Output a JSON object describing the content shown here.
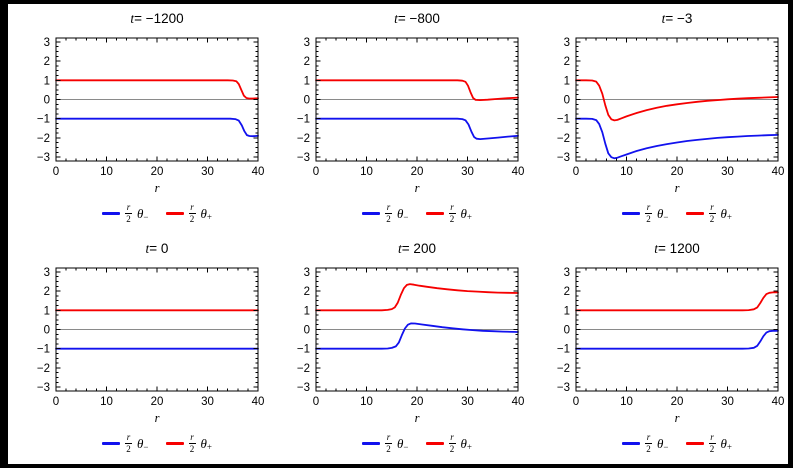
{
  "figure": {
    "background": "#ffffff",
    "border_color": "#000000"
  },
  "chart_data": {
    "type": "line",
    "layout": "2 rows x 3 columns of framed panels",
    "xlabel": "r",
    "xlim": [
      0,
      40
    ],
    "ylim": [
      -3.2,
      3.2
    ],
    "x_ticks": [
      0,
      10,
      20,
      30,
      40
    ],
    "x_tick_labels": [
      "0",
      "10",
      "20",
      "30",
      "40"
    ],
    "x_minor_step": 2,
    "y_ticks": [
      -3,
      -2,
      -1,
      0,
      1,
      2,
      3
    ],
    "y_tick_labels": [
      "−3",
      "−2",
      "−1",
      "0",
      "1",
      "2",
      "3"
    ],
    "y_minor_step": 0.25,
    "grid": "zero-line only",
    "zero_line_color": "#8a8a8a",
    "frame_color": "#000000",
    "legend_position": "below each panel",
    "legend": {
      "items": [
        {
          "series": "theta-minus",
          "color": "#1212ee",
          "frac_num": "r",
          "frac_den": "2",
          "symbol": "θ",
          "subscript": "−"
        },
        {
          "series": "theta-plus",
          "color": "#f60000",
          "frac_num": "r",
          "frac_den": "2",
          "symbol": "θ",
          "subscript": "+"
        }
      ]
    },
    "panels": [
      {
        "title_var": "t",
        "title_rest": "= −1200",
        "series": [
          {
            "name": "theta-minus",
            "color": "#1212ee",
            "points": [
              [
                0,
                -1
              ],
              [
                10,
                -1
              ],
              [
                20,
                -1
              ],
              [
                30,
                -1
              ],
              [
                34.5,
                -1
              ],
              [
                35.5,
                -1.02
              ],
              [
                36.2,
                -1.1
              ],
              [
                36.8,
                -1.35
              ],
              [
                37.3,
                -1.65
              ],
              [
                37.8,
                -1.85
              ],
              [
                38.3,
                -1.9
              ],
              [
                39,
                -1.91
              ],
              [
                40,
                -1.89
              ]
            ]
          },
          {
            "name": "theta-plus",
            "color": "#f60000",
            "points": [
              [
                0,
                1
              ],
              [
                10,
                1
              ],
              [
                20,
                1
              ],
              [
                30,
                1
              ],
              [
                34,
                1
              ],
              [
                35,
                0.99
              ],
              [
                35.7,
                0.95
              ],
              [
                36.2,
                0.8
              ],
              [
                36.7,
                0.5
              ],
              [
                37.2,
                0.2
              ],
              [
                37.7,
                0.08
              ],
              [
                38.2,
                0.05
              ],
              [
                39,
                0.05
              ],
              [
                40,
                0.06
              ]
            ]
          }
        ]
      },
      {
        "title_var": "t",
        "title_rest": "= −800",
        "series": [
          {
            "name": "theta-minus",
            "color": "#1212ee",
            "points": [
              [
                0,
                -1
              ],
              [
                10,
                -1
              ],
              [
                20,
                -1
              ],
              [
                28,
                -1
              ],
              [
                29,
                -1.02
              ],
              [
                29.6,
                -1.08
              ],
              [
                30.2,
                -1.3
              ],
              [
                30.8,
                -1.68
              ],
              [
                31.3,
                -1.95
              ],
              [
                31.8,
                -2.04
              ],
              [
                32.5,
                -2.06
              ],
              [
                34,
                -2.03
              ],
              [
                36,
                -1.98
              ],
              [
                38,
                -1.93
              ],
              [
                40,
                -1.89
              ]
            ]
          },
          {
            "name": "theta-plus",
            "color": "#f60000",
            "points": [
              [
                0,
                1
              ],
              [
                10,
                1
              ],
              [
                20,
                1
              ],
              [
                28,
                1
              ],
              [
                29,
                0.98
              ],
              [
                29.6,
                0.92
              ],
              [
                30.1,
                0.72
              ],
              [
                30.6,
                0.38
              ],
              [
                31.1,
                0.08
              ],
              [
                31.6,
                -0.02
              ],
              [
                32.5,
                -0.03
              ],
              [
                34,
                -0.01
              ],
              [
                36,
                0.03
              ],
              [
                38,
                0.07
              ],
              [
                40,
                0.1
              ]
            ]
          }
        ]
      },
      {
        "title_var": "t",
        "title_rest": "= −3",
        "series": [
          {
            "name": "theta-minus",
            "color": "#1212ee",
            "points": [
              [
                0,
                -1
              ],
              [
                2,
                -1
              ],
              [
                3.2,
                -1.01
              ],
              [
                4,
                -1.07
              ],
              [
                4.6,
                -1.28
              ],
              [
                5.2,
                -1.7
              ],
              [
                5.8,
                -2.3
              ],
              [
                6.4,
                -2.8
              ],
              [
                7,
                -3.0
              ],
              [
                7.6,
                -3.06
              ],
              [
                8.2,
                -3.03
              ],
              [
                9,
                -2.95
              ],
              [
                10,
                -2.86
              ],
              [
                12,
                -2.68
              ],
              [
                14,
                -2.54
              ],
              [
                16,
                -2.42
              ],
              [
                18,
                -2.32
              ],
              [
                20,
                -2.24
              ],
              [
                22,
                -2.16
              ],
              [
                24,
                -2.1
              ],
              [
                26,
                -2.05
              ],
              [
                28,
                -2.0
              ],
              [
                30,
                -1.96
              ],
              [
                32,
                -1.93
              ],
              [
                34,
                -1.9
              ],
              [
                36,
                -1.88
              ],
              [
                38,
                -1.86
              ],
              [
                40,
                -1.84
              ]
            ]
          },
          {
            "name": "theta-plus",
            "color": "#f60000",
            "points": [
              [
                0,
                1
              ],
              [
                2,
                1
              ],
              [
                3.2,
                0.99
              ],
              [
                4,
                0.93
              ],
              [
                4.6,
                0.72
              ],
              [
                5.2,
                0.3
              ],
              [
                5.8,
                -0.3
              ],
              [
                6.4,
                -0.8
              ],
              [
                7,
                -1.03
              ],
              [
                7.6,
                -1.09
              ],
              [
                8.2,
                -1.06
              ],
              [
                9,
                -0.98
              ],
              [
                10,
                -0.88
              ],
              [
                12,
                -0.7
              ],
              [
                14,
                -0.55
              ],
              [
                16,
                -0.43
              ],
              [
                18,
                -0.33
              ],
              [
                20,
                -0.25
              ],
              [
                22,
                -0.18
              ],
              [
                24,
                -0.12
              ],
              [
                26,
                -0.07
              ],
              [
                28,
                -0.03
              ],
              [
                30,
                0.01
              ],
              [
                32,
                0.04
              ],
              [
                34,
                0.07
              ],
              [
                36,
                0.09
              ],
              [
                38,
                0.11
              ],
              [
                40,
                0.13
              ]
            ]
          }
        ]
      },
      {
        "title_var": "t",
        "title_rest": "= 0",
        "series": [
          {
            "name": "theta-minus",
            "color": "#1212ee",
            "points": [
              [
                0,
                -1
              ],
              [
                10,
                -1
              ],
              [
                20,
                -1
              ],
              [
                30,
                -1
              ],
              [
                40,
                -1
              ]
            ]
          },
          {
            "name": "theta-plus",
            "color": "#f60000",
            "points": [
              [
                0,
                1
              ],
              [
                10,
                1
              ],
              [
                20,
                1
              ],
              [
                30,
                1
              ],
              [
                40,
                1
              ]
            ]
          }
        ]
      },
      {
        "title_var": "t",
        "title_rest": "= 200",
        "series": [
          {
            "name": "theta-minus",
            "color": "#1212ee",
            "points": [
              [
                0,
                -1
              ],
              [
                10,
                -1
              ],
              [
                13,
                -1
              ],
              [
                14.2,
                -0.99
              ],
              [
                15,
                -0.96
              ],
              [
                15.8,
                -0.88
              ],
              [
                16.4,
                -0.68
              ],
              [
                17,
                -0.3
              ],
              [
                17.6,
                0.05
              ],
              [
                18.2,
                0.25
              ],
              [
                18.8,
                0.32
              ],
              [
                19.6,
                0.31
              ],
              [
                21,
                0.26
              ],
              [
                23,
                0.19
              ],
              [
                25,
                0.12
              ],
              [
                27,
                0.06
              ],
              [
                29,
                0.01
              ],
              [
                31,
                -0.03
              ],
              [
                33,
                -0.07
              ],
              [
                35,
                -0.09
              ],
              [
                37,
                -0.11
              ],
              [
                40,
                -0.13
              ]
            ]
          },
          {
            "name": "theta-plus",
            "color": "#f60000",
            "points": [
              [
                0,
                1
              ],
              [
                10,
                1
              ],
              [
                13,
                1
              ],
              [
                14.2,
                1.02
              ],
              [
                15,
                1.06
              ],
              [
                15.6,
                1.15
              ],
              [
                16.2,
                1.4
              ],
              [
                16.8,
                1.8
              ],
              [
                17.4,
                2.15
              ],
              [
                18,
                2.32
              ],
              [
                18.6,
                2.36
              ],
              [
                19.4,
                2.33
              ],
              [
                20.5,
                2.28
              ],
              [
                22,
                2.22
              ],
              [
                24,
                2.15
              ],
              [
                26,
                2.09
              ],
              [
                28,
                2.04
              ],
              [
                30,
                2.0
              ],
              [
                32,
                1.97
              ],
              [
                34,
                1.94
              ],
              [
                36,
                1.92
              ],
              [
                38,
                1.91
              ],
              [
                40,
                1.9
              ]
            ]
          }
        ]
      },
      {
        "title_var": "t",
        "title_rest": "= 1200",
        "series": [
          {
            "name": "theta-minus",
            "color": "#1212ee",
            "points": [
              [
                0,
                -1
              ],
              [
                10,
                -1
              ],
              [
                20,
                -1
              ],
              [
                30,
                -1
              ],
              [
                33,
                -1
              ],
              [
                34.2,
                -0.99
              ],
              [
                35.2,
                -0.95
              ],
              [
                35.9,
                -0.85
              ],
              [
                36.5,
                -0.62
              ],
              [
                37.1,
                -0.35
              ],
              [
                37.7,
                -0.16
              ],
              [
                38.3,
                -0.09
              ],
              [
                39,
                -0.07
              ],
              [
                40,
                -0.07
              ]
            ]
          },
          {
            "name": "theta-plus",
            "color": "#f60000",
            "points": [
              [
                0,
                1
              ],
              [
                10,
                1
              ],
              [
                20,
                1
              ],
              [
                30,
                1
              ],
              [
                33,
                1
              ],
              [
                34.2,
                1.01
              ],
              [
                35.2,
                1.05
              ],
              [
                35.9,
                1.15
              ],
              [
                36.5,
                1.38
              ],
              [
                37.1,
                1.65
              ],
              [
                37.7,
                1.84
              ],
              [
                38.3,
                1.91
              ],
              [
                39,
                1.93
              ],
              [
                40,
                1.93
              ]
            ]
          }
        ]
      }
    ]
  }
}
